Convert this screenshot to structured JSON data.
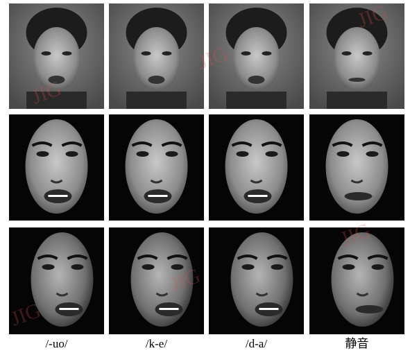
{
  "figure": {
    "labels": [
      "/-uo/",
      "/k-e/",
      "/d-a/",
      "静音"
    ],
    "watermark": "JIG"
  }
}
